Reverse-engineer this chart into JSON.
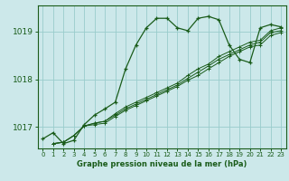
{
  "bg_color": "#cce8ea",
  "grid_color": "#99cccc",
  "line_color": "#1a5c1a",
  "title": "Graphe pression niveau de la mer (hPa)",
  "xlim": [
    -0.5,
    23.5
  ],
  "ylim": [
    1016.55,
    1019.55
  ],
  "yticks": [
    1017,
    1018,
    1019
  ],
  "xticks": [
    0,
    1,
    2,
    3,
    4,
    5,
    6,
    7,
    8,
    9,
    10,
    11,
    12,
    13,
    14,
    15,
    16,
    17,
    18,
    19,
    20,
    21,
    22,
    23
  ],
  "series": [
    {
      "x": [
        0,
        1,
        2,
        3,
        4,
        5,
        6,
        7,
        8,
        9,
        10,
        11,
        12,
        13,
        14,
        15,
        16,
        17,
        18,
        19,
        20,
        21,
        22,
        23
      ],
      "y": [
        1016.75,
        1016.88,
        1016.65,
        1016.72,
        1017.05,
        1017.25,
        1017.38,
        1017.52,
        1018.22,
        1018.72,
        1019.08,
        1019.28,
        1019.28,
        1019.08,
        1019.02,
        1019.28,
        1019.32,
        1019.25,
        1018.72,
        1018.42,
        1018.35,
        1019.08,
        1019.15,
        1019.1
      ]
    },
    {
      "x": [
        1,
        2,
        3,
        4,
        5,
        6,
        7,
        8,
        9,
        10,
        11,
        12,
        13,
        14,
        15,
        16,
        17,
        18,
        19,
        20,
        21,
        22,
        23
      ],
      "y": [
        1016.65,
        1016.68,
        1016.82,
        1017.02,
        1017.08,
        1017.12,
        1017.28,
        1017.42,
        1017.52,
        1017.62,
        1017.72,
        1017.82,
        1017.92,
        1018.08,
        1018.22,
        1018.32,
        1018.48,
        1018.58,
        1018.68,
        1018.78,
        1018.82,
        1019.02,
        1019.08
      ]
    },
    {
      "x": [
        1,
        2,
        3,
        4,
        5,
        6,
        7,
        8,
        9,
        10,
        11,
        12,
        13,
        14,
        15,
        16,
        17,
        18,
        19,
        20,
        21,
        22,
        23
      ],
      "y": [
        1016.65,
        1016.68,
        1016.82,
        1017.02,
        1017.08,
        1017.12,
        1017.25,
        1017.38,
        1017.48,
        1017.58,
        1017.68,
        1017.78,
        1017.88,
        1018.02,
        1018.15,
        1018.28,
        1018.42,
        1018.52,
        1018.62,
        1018.72,
        1018.78,
        1018.98,
        1019.02
      ]
    },
    {
      "x": [
        1,
        2,
        3,
        4,
        5,
        6,
        7,
        8,
        9,
        10,
        11,
        12,
        13,
        14,
        15,
        16,
        17,
        18,
        19,
        20,
        21,
        22,
        23
      ],
      "y": [
        1016.65,
        1016.68,
        1016.82,
        1017.02,
        1017.05,
        1017.08,
        1017.22,
        1017.35,
        1017.45,
        1017.55,
        1017.65,
        1017.75,
        1017.85,
        1017.98,
        1018.08,
        1018.22,
        1018.35,
        1018.48,
        1018.58,
        1018.68,
        1018.72,
        1018.92,
        1018.98
      ]
    }
  ]
}
